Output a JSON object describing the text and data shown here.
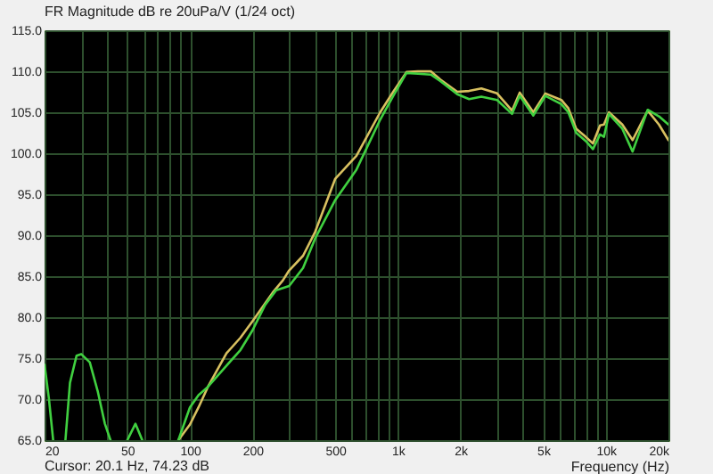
{
  "chart_data": {
    "type": "line",
    "title": "FR Magnitude dB re 20uPa/V (1/24 oct)",
    "xlabel": "Frequency (Hz)",
    "annotations": [
      "Cursor: 20.1 Hz, 74.23 dB"
    ],
    "log": "x",
    "grid": true,
    "legend": false,
    "line_style": "solid",
    "marker": "none",
    "xlim": [
      20,
      20000
    ],
    "xticks": [
      20,
      {
        "value": 30,
        "label": null
      },
      {
        "value": 40,
        "label": null
      },
      50,
      {
        "value": 60,
        "label": null
      },
      {
        "value": 70,
        "label": null
      },
      {
        "value": 80,
        "label": null
      },
      {
        "value": 90,
        "label": null
      },
      100,
      200,
      {
        "value": 300,
        "label": null
      },
      {
        "value": 400,
        "label": null
      },
      500,
      {
        "value": 600,
        "label": null
      },
      {
        "value": 700,
        "label": null
      },
      {
        "value": 800,
        "label": null
      },
      {
        "value": 900,
        "label": null
      },
      {
        "value": 1000,
        "label": "1k"
      },
      {
        "value": 2000,
        "label": "2k"
      },
      {
        "value": 3000,
        "label": null
      },
      {
        "value": 4000,
        "label": null
      },
      {
        "value": 5000,
        "label": "5k"
      },
      {
        "value": 6000,
        "label": null
      },
      {
        "value": 7000,
        "label": null
      },
      {
        "value": 8000,
        "label": null
      },
      {
        "value": 9000,
        "label": null
      },
      {
        "value": 10000,
        "label": "10k"
      },
      {
        "value": 20000,
        "label": "20k"
      }
    ],
    "ylim": [
      65,
      115
    ],
    "yticks": [
      {
        "value": 65,
        "label": "65.0"
      },
      {
        "value": 70,
        "label": "70.0"
      },
      {
        "value": 75,
        "label": "75.0"
      },
      {
        "value": 80,
        "label": "80.0"
      },
      {
        "value": 85,
        "label": "85.0"
      },
      {
        "value": 90,
        "label": "90.0"
      },
      {
        "value": 95,
        "label": "95.0"
      },
      {
        "value": 100,
        "label": "100.0"
      },
      {
        "value": 105,
        "label": "105.0"
      },
      {
        "value": 110,
        "label": "110.0"
      },
      {
        "value": 115,
        "label": "115.0"
      }
    ],
    "series": [
      {
        "color": "#d8c060",
        "x": [
          88,
          100,
          110,
          122,
          150,
          175,
          200,
          250,
          280,
          300,
          350,
          400,
          500,
          632,
          822,
          950,
          1100,
          1250,
          1440,
          1600,
          1930,
          2200,
          2520,
          3000,
          3540,
          3855,
          4480,
          5120,
          6110,
          6600,
          7200,
          8000,
          8670,
          9380,
          9800,
          10350,
          12000,
          13450,
          15900,
          18000,
          20000
        ],
        "values": [
          65,
          66.9,
          69,
          71.5,
          75.6,
          77.5,
          79.5,
          83,
          84.5,
          85.7,
          87.5,
          90.4,
          96.9,
          99.7,
          105,
          107.5,
          109.9,
          110,
          110,
          109,
          107.5,
          107.6,
          107.9,
          107.3,
          105.2,
          107.4,
          105,
          107.3,
          106.5,
          105.5,
          103,
          102,
          101.2,
          103.4,
          103.5,
          105,
          103.5,
          101.6,
          105.2,
          103.5,
          101.6
        ]
      },
      {
        "color": "#40d040",
        "x": [
          20,
          21,
          22,
          23.5,
          25.2,
          26.5,
          28.5,
          30,
          33,
          36,
          39,
          41.5,
          45,
          50,
          54.7,
          59,
          70,
          88,
          100,
          110,
          122,
          150,
          175,
          200,
          230,
          260,
          300,
          350,
          400,
          500,
          632,
          822,
          950,
          1100,
          1250,
          1440,
          1600,
          1930,
          2200,
          2520,
          3000,
          3540,
          3855,
          4480,
          5120,
          6110,
          6600,
          7200,
          8000,
          8670,
          9380,
          9800,
          10350,
          12000,
          13450,
          15900,
          18000,
          20000
        ],
        "values": [
          74.2,
          70,
          65,
          null,
          65,
          72,
          75.3,
          75.5,
          74.5,
          71,
          67,
          65,
          null,
          65,
          67,
          65,
          null,
          65,
          69,
          70.5,
          71.5,
          74.1,
          76,
          78.4,
          81.5,
          83.3,
          83.8,
          86,
          89.6,
          94.3,
          98,
          104.1,
          107,
          109.8,
          109.7,
          109.6,
          108.8,
          107.2,
          106.6,
          106.9,
          106.5,
          104.8,
          107,
          104.6,
          107,
          106,
          105,
          102.5,
          101.5,
          100.5,
          102.3,
          102,
          104.8,
          103,
          100.2,
          105.3,
          104.5,
          103.5
        ]
      }
    ]
  }
}
